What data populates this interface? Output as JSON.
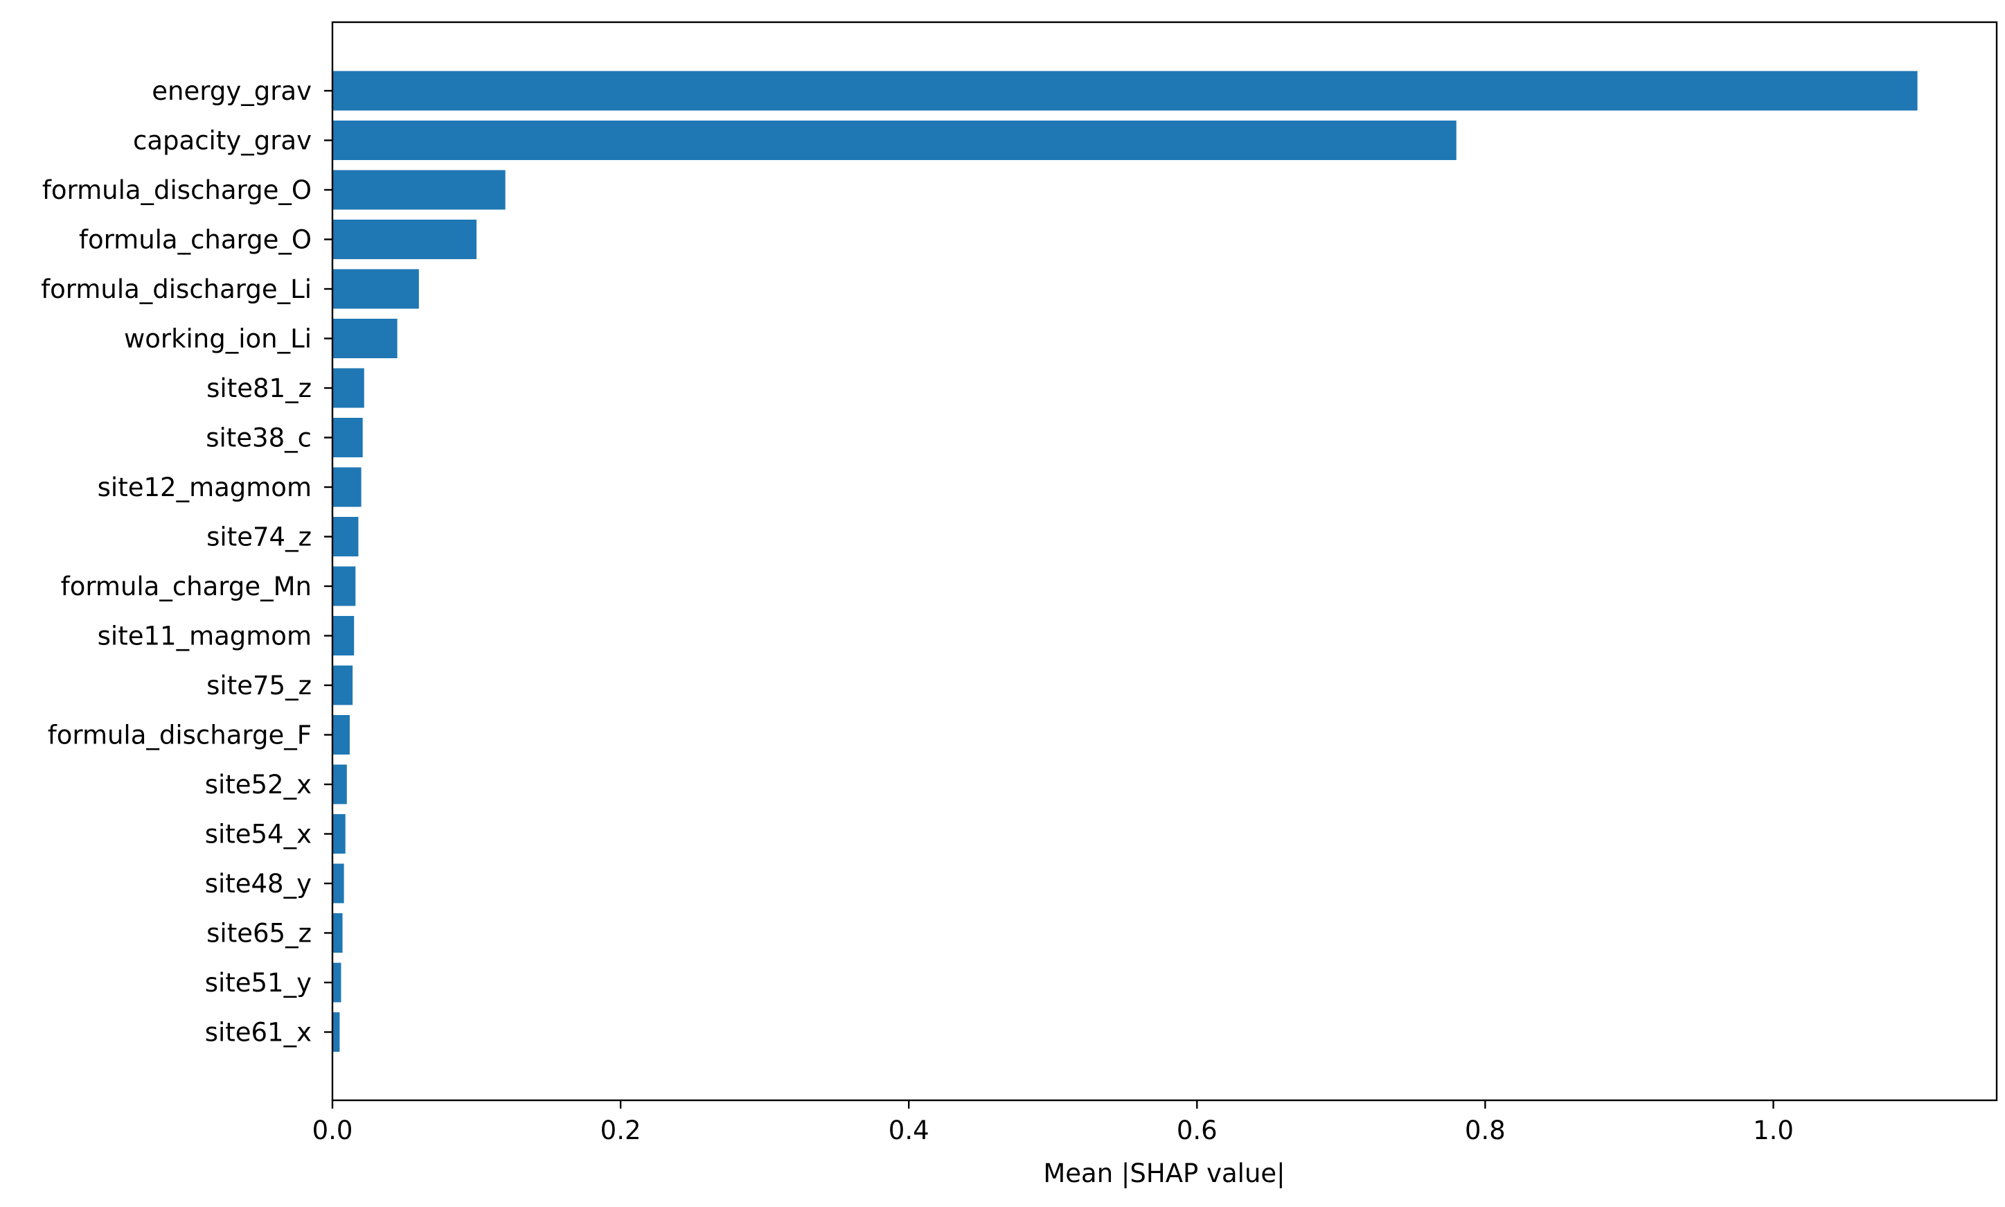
{
  "chart_data": {
    "type": "bar",
    "orientation": "horizontal",
    "title": "",
    "xlabel": "Mean |SHAP value|",
    "ylabel": "",
    "xlim": [
      0,
      1.155
    ],
    "xticks": [
      {
        "value": 0.0,
        "label": "0.0"
      },
      {
        "value": 0.2,
        "label": "0.2"
      },
      {
        "value": 0.4,
        "label": "0.4"
      },
      {
        "value": 0.6,
        "label": "0.6"
      },
      {
        "value": 0.8,
        "label": "0.8"
      },
      {
        "value": 1.0,
        "label": "1.0"
      }
    ],
    "grid": false,
    "bar_color": "#1f77b4",
    "categories": [
      "energy_grav",
      "capacity_grav",
      "formula_discharge_O",
      "formula_charge_O",
      "formula_discharge_Li",
      "working_ion_Li",
      "site81_z",
      "site38_c",
      "site12_magmom",
      "site74_z",
      "formula_charge_Mn",
      "site11_magmom",
      "site75_z",
      "formula_discharge_F",
      "site52_x",
      "site54_x",
      "site48_y",
      "site65_z",
      "site51_y",
      "site61_x"
    ],
    "values": [
      1.1,
      0.78,
      0.12,
      0.1,
      0.06,
      0.045,
      0.022,
      0.021,
      0.02,
      0.018,
      0.016,
      0.015,
      0.014,
      0.012,
      0.01,
      0.009,
      0.008,
      0.007,
      0.006,
      0.005
    ]
  }
}
